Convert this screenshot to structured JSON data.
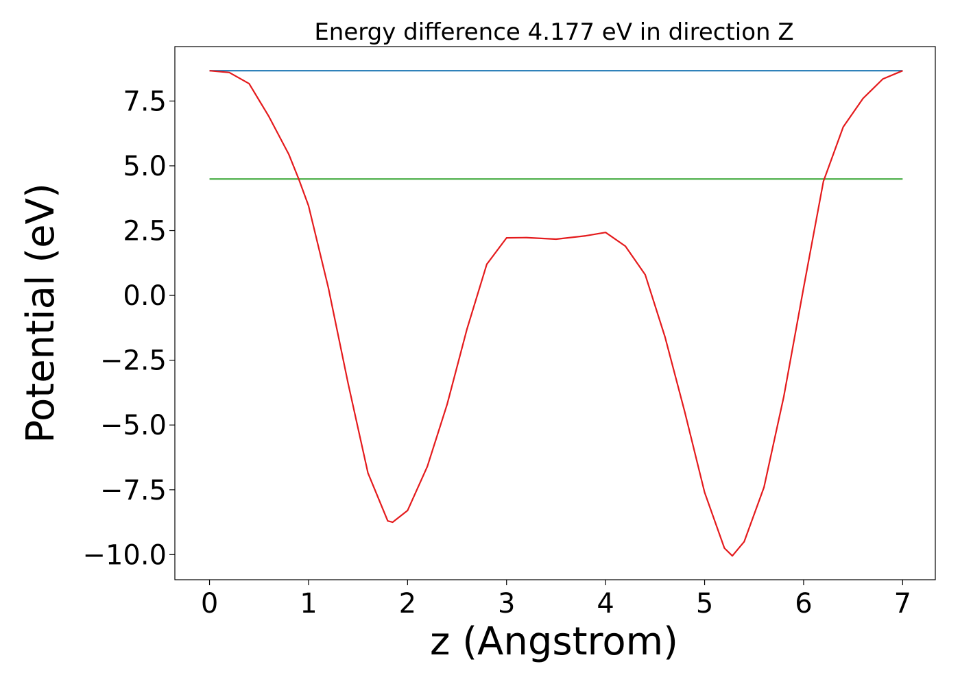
{
  "chart_data": {
    "type": "line",
    "title": "Energy difference 4.177 eV in direction Z",
    "x_label": "z (Angstrom)",
    "y_label": "Potential (eV)",
    "xlim": [
      -0.35,
      7.33
    ],
    "ylim": [
      -10.97,
      9.6
    ],
    "xticks": [
      0,
      1,
      2,
      3,
      4,
      5,
      6,
      7
    ],
    "yticks": [
      {
        "value": -10,
        "label": "−10.0"
      },
      {
        "value": -7.5,
        "label": "−7.5"
      },
      {
        "value": -5,
        "label": "−5.0"
      },
      {
        "value": -2.5,
        "label": "−2.5"
      },
      {
        "value": 0,
        "label": "0.0"
      },
      2.5,
      {
        "value": 5,
        "label": "5.0"
      },
      7.5
    ],
    "series": [
      {
        "color": "#1f77b4",
        "x": [
          0,
          7
        ],
        "values": [
          8.67,
          8.67
        ]
      },
      {
        "color": "#4daf4a",
        "x": [
          0,
          7
        ],
        "values": [
          4.49,
          4.49
        ]
      },
      {
        "color": "#e41a1c",
        "x": [
          0,
          0.2,
          0.4,
          0.6,
          0.8,
          0.9,
          1.0,
          1.2,
          1.4,
          1.6,
          1.8,
          1.85,
          2.0,
          2.2,
          2.4,
          2.6,
          2.8,
          3.0,
          3.2,
          3.5,
          3.8,
          4.0,
          4.2,
          4.4,
          4.6,
          4.8,
          5.0,
          5.2,
          5.28,
          5.4,
          5.6,
          5.8,
          6.0,
          6.2,
          6.4,
          6.6,
          6.8,
          7.0
        ],
        "values": [
          8.67,
          8.6,
          8.17,
          6.9,
          5.45,
          4.5,
          3.46,
          0.3,
          -3.4,
          -6.85,
          -8.7,
          -8.75,
          -8.3,
          -6.6,
          -4.2,
          -1.3,
          1.2,
          2.22,
          2.23,
          2.17,
          2.3,
          2.43,
          1.9,
          0.8,
          -1.6,
          -4.5,
          -7.6,
          -9.75,
          -10.05,
          -9.5,
          -7.4,
          -3.9,
          0.3,
          4.4,
          6.5,
          7.6,
          8.35,
          8.67
        ]
      }
    ]
  }
}
